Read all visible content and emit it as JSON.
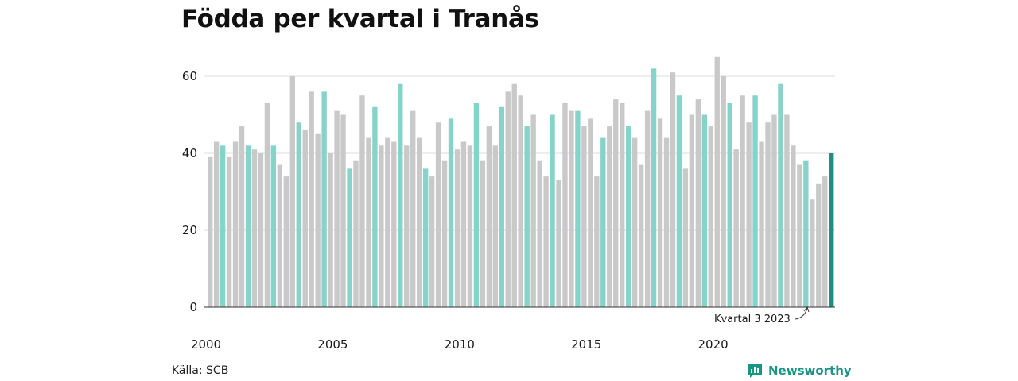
{
  "title": "Födda per kvartal i Tranås",
  "source": "Källa: SCB",
  "brand": {
    "name": "Newsworthy",
    "icon": "bar-chart-speech-icon"
  },
  "colors": {
    "default": "#c9c9c9",
    "same_quarter": "#86d3c9",
    "latest": "#1a8f80",
    "grid": "#dddddd",
    "axis": "#333333",
    "brand": "#1a9484"
  },
  "chart_data": {
    "type": "bar",
    "title": "Födda per kvartal i Tranås",
    "xlabel": "",
    "ylabel": "",
    "ylim": [
      0,
      65
    ],
    "yticks": [
      0,
      20,
      40,
      60
    ],
    "x_tick_labels": [
      "2000",
      "2005",
      "2010",
      "2015",
      "2020"
    ],
    "grid": true,
    "highlight": "third quarter of each year; latest value darker",
    "annotation": "Kvartal 3 2023",
    "start_year": 2000,
    "values": [
      39,
      43,
      42,
      39,
      43,
      47,
      42,
      41,
      40,
      53,
      42,
      37,
      34,
      60,
      48,
      46,
      56,
      45,
      56,
      40,
      51,
      50,
      36,
      38,
      55,
      44,
      52,
      42,
      44,
      43,
      58,
      42,
      51,
      44,
      36,
      34,
      48,
      38,
      49,
      41,
      43,
      42,
      53,
      38,
      47,
      42,
      52,
      56,
      58,
      55,
      47,
      50,
      38,
      34,
      50,
      33,
      53,
      51,
      51,
      47,
      49,
      34,
      44,
      47,
      54,
      53,
      47,
      44,
      37,
      51,
      62,
      49,
      44,
      61,
      55,
      36,
      50,
      54,
      50,
      47,
      65,
      60,
      53,
      41,
      55,
      48,
      55,
      43,
      48,
      50,
      58,
      50,
      42,
      37,
      38,
      28,
      32,
      34,
      40
    ]
  }
}
